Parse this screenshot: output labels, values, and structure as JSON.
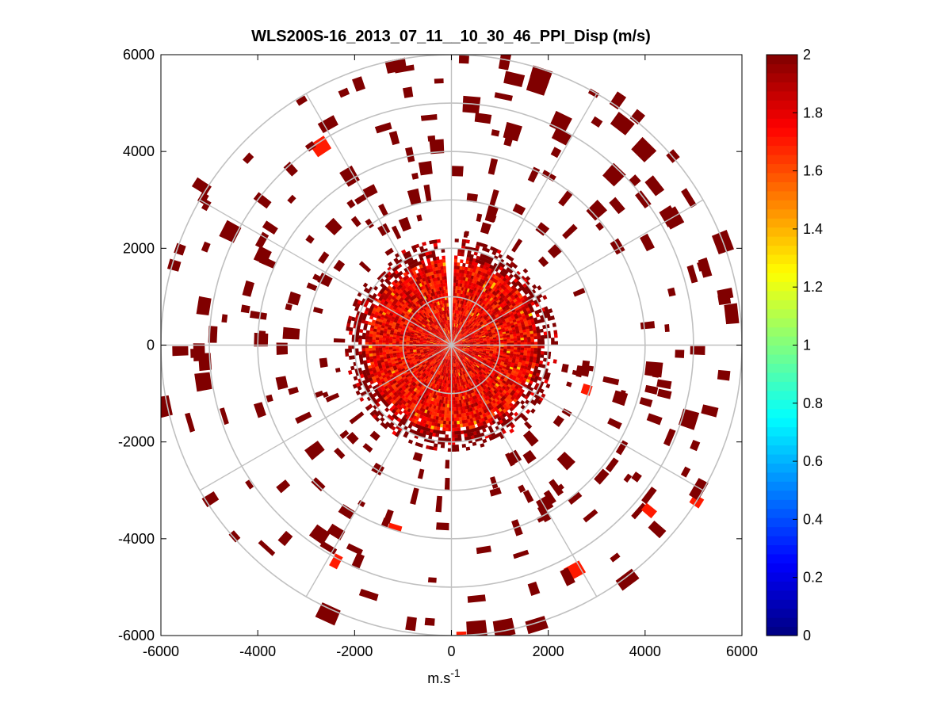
{
  "chart_data": {
    "type": "heatmap",
    "subtype": "polar-ppi",
    "title": "WLS200S-16_2013_07_11__10_30_46_PPI_Disp (m/s)",
    "xlabel": "m.s",
    "xlabel_sup": "-1",
    "ylabel": "",
    "xlim": [
      -6000,
      6000
    ],
    "ylim": [
      -6000,
      6000
    ],
    "xticks": [
      -6000,
      -4000,
      -2000,
      0,
      2000,
      4000,
      6000
    ],
    "yticks": [
      -6000,
      -4000,
      -2000,
      0,
      2000,
      4000,
      6000
    ],
    "polar_grid": {
      "ring_radii": [
        1000,
        2000,
        3000,
        4000,
        5000,
        6000
      ],
      "spoke_angles_deg": [
        0,
        30,
        60,
        90,
        120,
        150,
        180,
        210,
        240,
        270,
        300,
        330
      ]
    },
    "colorbar": {
      "colormap": "jet",
      "clim": [
        0,
        2
      ],
      "ticks": [
        0,
        0.2,
        0.4,
        0.6,
        0.8,
        1,
        1.2,
        1.4,
        1.6,
        1.8,
        2
      ],
      "tick_labels": [
        "0",
        "0.2",
        "0.4",
        "0.6",
        "0.8",
        "1",
        "1.2",
        "1.4",
        "1.6",
        "1.8",
        "2"
      ]
    },
    "field_summary": {
      "dense_region_max_range_m": 2200,
      "sparse_region_max_range_m": 6000,
      "dominant_value_m_s": 2,
      "core_value_range_m_s": [
        1.6,
        1.95
      ],
      "occasional_low_values_m_s": [
        1.3,
        1.5
      ]
    }
  }
}
